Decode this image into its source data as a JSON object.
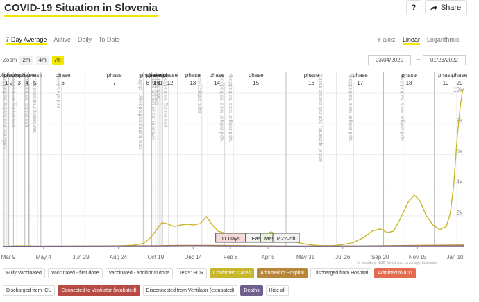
{
  "header": {
    "title": "COVID-19 Situation in Slovenia",
    "help_label": "?",
    "share_label": "Share",
    "share_icon": "share-arrow-icon"
  },
  "tabs": [
    {
      "label": "7-Day Average",
      "active": true
    },
    {
      "label": "Active",
      "active": false
    },
    {
      "label": "Daily",
      "active": false
    },
    {
      "label": "To Date",
      "active": false
    }
  ],
  "yaxis_toggle": {
    "label": "Y axis:",
    "options": [
      {
        "label": "Linear",
        "active": true
      },
      {
        "label": "Logarithmic",
        "active": false
      }
    ]
  },
  "zoom": {
    "label": "Zoom",
    "options": [
      {
        "label": "2m",
        "active": false
      },
      {
        "label": "4m",
        "active": false
      },
      {
        "label": "All",
        "active": true
      }
    ]
  },
  "range": {
    "from": "03/04/2020",
    "separator": "–",
    "to": "01/23/2022"
  },
  "source_text": "vir podatkov: NIJZ, Ministrstvo za zdravje, bolnišnice",
  "legend": [
    {
      "label": "Fully Vaccinated",
      "bg": "#ffffff",
      "fg": "#333333"
    },
    {
      "label": "Vaccinated - first dose",
      "bg": "#ffffff",
      "fg": "#333333"
    },
    {
      "label": "Vaccinated - additional dose",
      "bg": "#ffffff",
      "fg": "#333333"
    },
    {
      "label": "Tests: PCR",
      "bg": "#ffffff",
      "fg": "#333333"
    },
    {
      "label": "Confirmed Cases",
      "bg": "#c8b62b",
      "fg": "#ffffff"
    },
    {
      "label": "Admitted to Hospital",
      "bg": "#b8863b",
      "fg": "#ffffff"
    },
    {
      "label": "Discharged from Hospital",
      "bg": "#ffffff",
      "fg": "#333333"
    },
    {
      "label": "Admitted to ICU",
      "bg": "#e36b4f",
      "fg": "#ffffff"
    },
    {
      "label": "Discharged from ICU",
      "bg": "#ffffff",
      "fg": "#333333"
    },
    {
      "label": "Connected to Ventilator (intubated)",
      "bg": "#b84a44",
      "fg": "#ffffff"
    },
    {
      "label": "Disconnected from Ventilator (extubated)",
      "bg": "#ffffff",
      "fg": "#333333"
    },
    {
      "label": "Deaths",
      "bg": "#6e5f8c",
      "fg": "#ffffff"
    },
    {
      "label": "Hide all",
      "bg": "#ffffff",
      "fg": "#333333"
    }
  ],
  "chart_data": {
    "type": "line",
    "x_range": [
      "2020-03-04",
      "2022-01-23"
    ],
    "ylim": [
      0,
      11000
    ],
    "y_ticks": [
      {
        "value": 2000,
        "label": "2k"
      },
      {
        "value": 4000,
        "label": "4k"
      },
      {
        "value": 6000,
        "label": "6k"
      },
      {
        "value": 8000,
        "label": "8k"
      },
      {
        "value": 10000,
        "label": "10k"
      }
    ],
    "x_ticks": [
      {
        "date": "2020-03-09",
        "label": "Mar 9"
      },
      {
        "date": "2020-05-04",
        "label": "May 4"
      },
      {
        "date": "2020-06-29",
        "label": "Jun 29"
      },
      {
        "date": "2020-08-24",
        "label": "Aug 24"
      },
      {
        "date": "2020-10-19",
        "label": "Oct 19"
      },
      {
        "date": "2020-12-14",
        "label": "Dec 14"
      },
      {
        "date": "2021-02-08",
        "label": "Feb 8"
      },
      {
        "date": "2021-04-05",
        "label": "Apr 5"
      },
      {
        "date": "2021-05-31",
        "label": "May 31"
      },
      {
        "date": "2021-07-26",
        "label": "Jul 26"
      },
      {
        "date": "2021-09-20",
        "label": "Sep 20"
      },
      {
        "date": "2021-11-15",
        "label": "Nov 15"
      },
      {
        "date": "2022-01-10",
        "label": "Jan 10"
      }
    ],
    "phases": [
      {
        "label": "phase 1",
        "date": "2020-03-06"
      },
      {
        "label": "phase 2",
        "date": "2020-03-13"
      },
      {
        "label": "phase 3",
        "date": "2020-03-20"
      },
      {
        "label": "phase 4",
        "date": "2020-04-06"
      },
      {
        "label": "phase 5",
        "date": "2020-04-12"
      },
      {
        "label": "phase 6",
        "date": "2020-04-30"
      },
      {
        "label": "phase 7",
        "date": "2020-07-05"
      },
      {
        "label": "phase 8",
        "date": "2020-10-01"
      },
      {
        "label": "phase 9",
        "date": "2020-10-13"
      },
      {
        "label": "phase 10",
        "date": "2020-10-19"
      },
      {
        "label": "phase 11",
        "date": "2020-10-22"
      },
      {
        "label": "phase 12",
        "date": "2020-10-29"
      },
      {
        "label": "phase 13",
        "date": "2020-11-21"
      },
      {
        "label": "phase 14",
        "date": "2021-01-05"
      },
      {
        "label": "phase 15",
        "date": "2021-02-01"
      },
      {
        "label": "phase 16",
        "date": "2021-05-02"
      },
      {
        "label": "phase 17",
        "date": "2021-07-17"
      },
      {
        "label": "phase 18",
        "date": "2021-09-25"
      },
      {
        "label": "phase 19",
        "date": "2021-12-10"
      },
      {
        "label": "phase 20",
        "date": "2022-01-13"
      }
    ],
    "events": [
      {
        "date": "2020-03-10",
        "text": "epidemic, new testing methodology"
      },
      {
        "date": "2020-03-25",
        "text": "new testing methodology"
      },
      {
        "date": "2020-04-13",
        "text": "new testing methodology"
      },
      {
        "date": "2020-04-25",
        "text": "new testing methodology, ..."
      },
      {
        "date": "2020-05-31",
        "text": "end of epidemic"
      },
      {
        "date": "2020-09-30",
        "text": "new testing methodology - children"
      },
      {
        "date": "2020-10-19",
        "text": "switch to partial contact tracing"
      },
      {
        "date": "2020-10-24",
        "text": "contact tracing"
      },
      {
        "date": "2020-10-27",
        "text": "new testing"
      },
      {
        "date": "2020-11-07",
        "text": "new testing methodology"
      },
      {
        "date": "2020-12-27",
        "text": "rapid antigen tests"
      },
      {
        "date": "2021-01-30",
        "text": "rapid antigen tests methodology"
      },
      {
        "date": "2021-02-12",
        "text": "rapid antigen tests methodology"
      },
      {
        "date": "2021-06-27",
        "text": "end of epidemic, high risk contact tracing"
      },
      {
        "date": "2021-08-11",
        "text": "rapid antigen tests methodology"
      },
      {
        "date": "2021-10-27",
        "text": "rapid antigen tests methodology"
      }
    ],
    "badges": [
      {
        "text": "11 Days",
        "date": "2021-02-08",
        "bg": "#f4d9d9"
      },
      {
        "text": "Easter",
        "date": "2021-03-23",
        "bg": "#f2f2f2"
      },
      {
        "text": "Masks",
        "date": "2021-04-11",
        "bg": "#eaf2e0"
      },
      {
        "text": "⊘22–5h",
        "date": "2021-05-02",
        "bg": "#f2f2f2"
      }
    ],
    "series": [
      {
        "name": "Confirmed Cases",
        "color": "#c8b62b",
        "points": [
          [
            "2020-03-04",
            0
          ],
          [
            "2020-03-25",
            40
          ],
          [
            "2020-04-10",
            35
          ],
          [
            "2020-05-01",
            10
          ],
          [
            "2020-06-01",
            5
          ],
          [
            "2020-07-05",
            15
          ],
          [
            "2020-08-15",
            20
          ],
          [
            "2020-09-15",
            80
          ],
          [
            "2020-10-01",
            200
          ],
          [
            "2020-10-12",
            600
          ],
          [
            "2020-10-22",
            1200
          ],
          [
            "2020-10-28",
            1550
          ],
          [
            "2020-11-04",
            1500
          ],
          [
            "2020-11-15",
            1300
          ],
          [
            "2020-11-25",
            1400
          ],
          [
            "2020-12-05",
            1450
          ],
          [
            "2020-12-15",
            1400
          ],
          [
            "2020-12-25",
            1500
          ],
          [
            "2021-01-03",
            1950
          ],
          [
            "2021-01-10",
            1500
          ],
          [
            "2021-01-20",
            1000
          ],
          [
            "2021-02-05",
            800
          ],
          [
            "2021-02-20",
            700
          ],
          [
            "2021-03-05",
            650
          ],
          [
            "2021-03-20",
            650
          ],
          [
            "2021-04-01",
            800
          ],
          [
            "2021-04-10",
            950
          ],
          [
            "2021-04-20",
            700
          ],
          [
            "2021-05-05",
            450
          ],
          [
            "2021-05-20",
            250
          ],
          [
            "2021-06-05",
            120
          ],
          [
            "2021-06-20",
            60
          ],
          [
            "2021-07-10",
            50
          ],
          [
            "2021-07-26",
            120
          ],
          [
            "2021-08-10",
            250
          ],
          [
            "2021-08-25",
            550
          ],
          [
            "2021-09-08",
            1000
          ],
          [
            "2021-09-20",
            1150
          ],
          [
            "2021-10-01",
            900
          ],
          [
            "2021-10-10",
            1000
          ],
          [
            "2021-10-20",
            1800
          ],
          [
            "2021-11-01",
            2900
          ],
          [
            "2021-11-10",
            3350
          ],
          [
            "2021-11-18",
            3000
          ],
          [
            "2021-11-28",
            2000
          ],
          [
            "2021-12-08",
            1400
          ],
          [
            "2021-12-18",
            1100
          ],
          [
            "2021-12-28",
            1300
          ],
          [
            "2022-01-03",
            2200
          ],
          [
            "2022-01-08",
            4000
          ],
          [
            "2022-01-13",
            7000
          ],
          [
            "2022-01-18",
            9200
          ],
          [
            "2022-01-21",
            10100
          ],
          [
            "2022-01-23",
            10300
          ]
        ]
      },
      {
        "name": "Admitted to Hospital",
        "color": "#b8863b",
        "points": [
          [
            "2020-03-04",
            0
          ],
          [
            "2020-10-20",
            30
          ],
          [
            "2020-11-20",
            60
          ],
          [
            "2021-01-10",
            55
          ],
          [
            "2021-03-15",
            30
          ],
          [
            "2021-05-01",
            15
          ],
          [
            "2021-07-20",
            5
          ],
          [
            "2021-11-15",
            60
          ],
          [
            "2022-01-23",
            80
          ]
        ]
      },
      {
        "name": "Deaths",
        "color": "#6e5f8c",
        "points": [
          [
            "2020-03-04",
            0
          ],
          [
            "2020-11-01",
            15
          ],
          [
            "2020-12-15",
            25
          ],
          [
            "2021-02-01",
            15
          ],
          [
            "2021-05-01",
            5
          ],
          [
            "2021-11-20",
            15
          ],
          [
            "2022-01-23",
            10
          ]
        ]
      }
    ]
  }
}
